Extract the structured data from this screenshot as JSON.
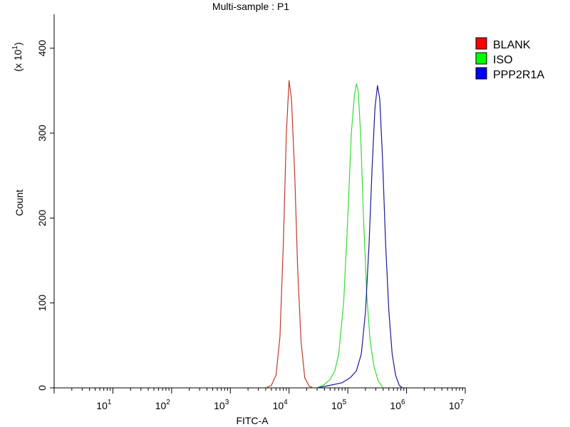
{
  "chart_data": {
    "type": "line",
    "title": "Multi-sample : P1",
    "xlabel": "FITC-A",
    "ylabel": "Count",
    "y_multiplier": "(x 10",
    "y_multiplier_exp": "1",
    "y_multiplier_close": ")",
    "x_scale": "log",
    "xlim": [
      1,
      10000000
    ],
    "ylim": [
      0,
      440
    ],
    "x_ticks": [
      {
        "base": "10",
        "exp": "1",
        "value": 10
      },
      {
        "base": "10",
        "exp": "2",
        "value": 100
      },
      {
        "base": "10",
        "exp": "3",
        "value": 1000
      },
      {
        "base": "10",
        "exp": "4",
        "value": 10000
      },
      {
        "base": "10",
        "exp": "5",
        "value": 100000
      },
      {
        "base": "10",
        "exp": "6",
        "value": 1000000
      },
      {
        "base": "10",
        "exp": "7",
        "value": 10000000
      }
    ],
    "y_ticks": [
      {
        "label": "0",
        "value": 0
      },
      {
        "label": "100",
        "value": 100
      },
      {
        "label": "200",
        "value": 200
      },
      {
        "label": "300",
        "value": 300
      },
      {
        "label": "400",
        "value": 400
      }
    ],
    "legend_position": "top-right",
    "grid": false,
    "series": [
      {
        "name": "BLANK",
        "color": "#ff0000",
        "line_color": "#c0392b",
        "points": [
          [
            4000,
            0
          ],
          [
            5000,
            3
          ],
          [
            6000,
            15
          ],
          [
            7000,
            60
          ],
          [
            8000,
            170
          ],
          [
            9000,
            300
          ],
          [
            10000,
            362
          ],
          [
            11000,
            340
          ],
          [
            12500,
            250
          ],
          [
            14000,
            140
          ],
          [
            16000,
            55
          ],
          [
            18500,
            12
          ],
          [
            22000,
            2
          ],
          [
            26000,
            0
          ]
        ]
      },
      {
        "name": "ISO",
        "color": "#00ff00",
        "line_color": "#33dd33",
        "points": [
          [
            30000,
            0
          ],
          [
            40000,
            4
          ],
          [
            50000,
            10
          ],
          [
            60000,
            20
          ],
          [
            70000,
            40
          ],
          [
            85000,
            100
          ],
          [
            100000,
            200
          ],
          [
            115000,
            300
          ],
          [
            130000,
            345
          ],
          [
            140000,
            358
          ],
          [
            150000,
            350
          ],
          [
            165000,
            300
          ],
          [
            185000,
            200
          ],
          [
            210000,
            110
          ],
          [
            240000,
            55
          ],
          [
            280000,
            25
          ],
          [
            330000,
            8
          ],
          [
            400000,
            0
          ]
        ]
      },
      {
        "name": "PPP2R1A",
        "color": "#0000ff",
        "line_color": "#1a1a99",
        "points": [
          [
            30000,
            0
          ],
          [
            50000,
            3
          ],
          [
            80000,
            6
          ],
          [
            110000,
            12
          ],
          [
            140000,
            20
          ],
          [
            170000,
            40
          ],
          [
            200000,
            90
          ],
          [
            230000,
            170
          ],
          [
            260000,
            260
          ],
          [
            290000,
            330
          ],
          [
            320000,
            356
          ],
          [
            350000,
            340
          ],
          [
            390000,
            270
          ],
          [
            440000,
            170
          ],
          [
            500000,
            90
          ],
          [
            570000,
            40
          ],
          [
            650000,
            15
          ],
          [
            750000,
            3
          ],
          [
            850000,
            0
          ]
        ]
      }
    ]
  }
}
